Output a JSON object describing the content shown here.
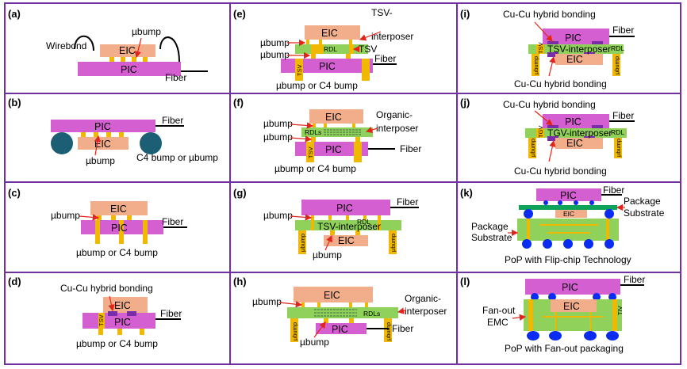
{
  "colors": {
    "border": "#7030a0",
    "pic": "#d35fd1",
    "eic": "#f2ae8a",
    "bump": "#f0b800",
    "interposer": "#8fd15a",
    "cuhb": "#7a2da8",
    "c4": "#1c5e74",
    "blue": "#0a2bf0",
    "substrate": "#0fa35a",
    "rdl": "#3c6d2f",
    "arrow": "#e1251b"
  },
  "panels": {
    "a": {
      "label": "(a)",
      "wirebond": "Wirebond",
      "ubump": "µbump",
      "eic": "EIC",
      "pic": "PIC",
      "fiber": "Fiber"
    },
    "b": {
      "label": "(b)",
      "pic": "PIC",
      "eic": "EIC",
      "fiber": "Fiber",
      "ubump": "µbump",
      "bottom": "C4 bump or µbump"
    },
    "c": {
      "label": "(c)",
      "eic": "EIC",
      "pic": "PIC",
      "ubump": "µbump",
      "fiber": "Fiber",
      "bottom": "µbump or C4 bump"
    },
    "d": {
      "label": "(d)",
      "top": "Cu-Cu hybrid bonding",
      "eic": "EIC",
      "pic": "PIC",
      "tsv": "TSV",
      "fiber": "Fiber",
      "bottom": "µbump or C4 bump"
    },
    "e": {
      "label": "(e)",
      "eic": "EIC",
      "pic": "PIC",
      "ubump1": "µbump",
      "ubump2": "µbump",
      "rdl": "RDL",
      "tsv_int": "TSV",
      "tsv": "TSV",
      "interposer1": "TSV-",
      "interposer2": "interposer",
      "fiber": "Fiber",
      "bottom": "µbump or C4 bump"
    },
    "f": {
      "label": "(f)",
      "eic": "EIC",
      "pic": "PIC",
      "ubump1": "µbump",
      "ubump2": "µbump",
      "rdl": "RDLs",
      "tsv": "TSV",
      "interposer1": "Organic-",
      "interposer2": "interposer",
      "fiber": "Fiber",
      "bottom": "µbump or C4 bump"
    },
    "g": {
      "label": "(g)",
      "pic": "PIC",
      "eic": "EIC",
      "ubump1": "µbump",
      "ubump2": "µbump",
      "rdl": "RDL",
      "interposer": "TSV-interposer",
      "fiber": "Fiber",
      "pillar": "µbump"
    },
    "h": {
      "label": "(h)",
      "eic": "EIC",
      "pic": "PIC",
      "ubump1": "µbump",
      "ubump2": "µbump",
      "rdl": "RDLs",
      "interposer1": "Organic-",
      "interposer2": "interposer",
      "fiber": "Fiber",
      "pillar": "µbump"
    },
    "i": {
      "label": "(i)",
      "top": "Cu-Cu hybrid bonding",
      "pic": "PIC",
      "interposer": "TSV-interposer",
      "eic": "EIC",
      "fiber": "Fiber",
      "tsv": "TSV",
      "rdl": "RDL",
      "pillar": "µbump",
      "bottom": "Cu-Cu hybrid bonding"
    },
    "j": {
      "label": "(j)",
      "top": "Cu-Cu hybrid bonding",
      "pic": "PIC",
      "interposer": "TGV-interposer",
      "eic": "EIC",
      "fiber": "Fiber",
      "tgv": "TGV",
      "rdl": "RDL",
      "pillar": "µbump",
      "bottom": "Cu-Cu hybrid bonding"
    },
    "k": {
      "label": "(k)",
      "pic": "PIC",
      "eic": "EIC",
      "fiber": "Fiber",
      "substrate_r1": "Package",
      "substrate_r2": "Substrate",
      "substrate_l1": "Package",
      "substrate_l2": "Substrate",
      "bottom": "PoP with Flip-chip Technology"
    },
    "l": {
      "label": "(l)",
      "pic": "PIC",
      "eic": "EIC",
      "fiber": "Fiber",
      "emc1": "Fan-out",
      "emc2": "EMC",
      "tiv": "TIV",
      "bottom": "PoP with Fan-out packaging"
    }
  }
}
